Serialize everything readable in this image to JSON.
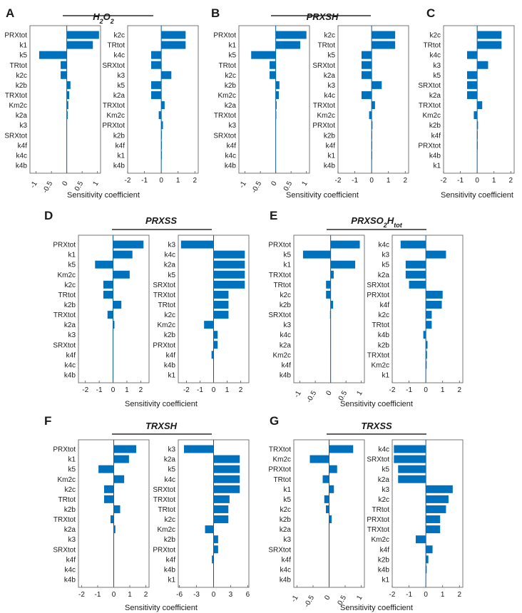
{
  "xlabel": "Sensitivity coefficient",
  "colors": {
    "bar": "#0072bd"
  },
  "chart_data": [
    {
      "type": "bar",
      "letter": "A",
      "title": "H2O2",
      "subplots": [
        {
          "categories": [
            "PRXtot",
            "k1",
            "k5",
            "TRtot",
            "k2c",
            "k2b",
            "TRXtot",
            "Km2c",
            "k2a",
            "k3",
            "SRXtot",
            "k4f",
            "k4c",
            "k4b"
          ],
          "values": [
            1.05,
            0.85,
            -0.9,
            -0.2,
            -0.2,
            0.12,
            0.08,
            0.05,
            0.03,
            0.0,
            0.0,
            0.0,
            0.0,
            0.0
          ],
          "xlim": [
            -1.2,
            1.1
          ],
          "xticks": [
            {
              "v": -1,
              "l": "-1"
            },
            {
              "v": -0.5,
              "l": "-0.5"
            },
            {
              "v": 0,
              "l": "0"
            },
            {
              "v": 0.5,
              "l": "0.5"
            },
            {
              "v": 1,
              "l": "1"
            }
          ],
          "rotate_ticks": true
        },
        {
          "categories": [
            "k2c",
            "TRtot",
            "k4c",
            "SRXtot",
            "k3",
            "k5",
            "k2a",
            "TRXtot",
            "Km2c",
            "PRXtot",
            "k2b",
            "k4f",
            "k1",
            "k4b"
          ],
          "values": [
            1.45,
            1.45,
            -0.6,
            -0.6,
            0.6,
            -0.6,
            -0.6,
            0.2,
            -0.15,
            0.1,
            0.02,
            0.01,
            0.01,
            0.0
          ],
          "xlim": [
            -2,
            2.2
          ],
          "xticks": [
            {
              "v": -2,
              "l": "-2"
            },
            {
              "v": -1,
              "l": "-1"
            },
            {
              "v": 0,
              "l": "0"
            },
            {
              "v": 1,
              "l": "1"
            },
            {
              "v": 2,
              "l": "2"
            }
          ],
          "rotate_ticks": false
        }
      ]
    },
    {
      "type": "bar",
      "letter": "B",
      "title": "PRXSH",
      "subplots": [
        {
          "categories": [
            "PRXtot",
            "k1",
            "k5",
            "TRtot",
            "k2c",
            "k2b",
            "Km2c",
            "k2a",
            "TRXtot",
            "k3",
            "SRXtot",
            "k4f",
            "k4c",
            "k4b"
          ],
          "values": [
            1.0,
            0.8,
            -0.8,
            -0.2,
            -0.2,
            0.12,
            0.1,
            0.03,
            0.02,
            0.0,
            0.0,
            0.0,
            0.0,
            0.0
          ],
          "xlim": [
            -1.2,
            1.1
          ],
          "xticks": [
            {
              "v": -1,
              "l": "-1"
            },
            {
              "v": -0.5,
              "l": "-0.5"
            },
            {
              "v": 0,
              "l": "0"
            },
            {
              "v": 0.5,
              "l": "0.5"
            },
            {
              "v": 1,
              "l": "1"
            }
          ],
          "rotate_ticks": true
        },
        {
          "categories": [
            "k2c",
            "TRtot",
            "k5",
            "SRXtot",
            "k2a",
            "k3",
            "k4c",
            "TRXtot",
            "Km2c",
            "PRXtot",
            "k2b",
            "k4f",
            "k1",
            "k4b"
          ],
          "values": [
            1.4,
            1.4,
            -0.6,
            -0.6,
            -0.6,
            0.6,
            -0.6,
            0.2,
            -0.15,
            0.05,
            0.02,
            0.01,
            0.01,
            0.0
          ],
          "xlim": [
            -2,
            2.2
          ],
          "xticks": [
            {
              "v": -2,
              "l": "-2"
            },
            {
              "v": -1,
              "l": "-1"
            },
            {
              "v": 0,
              "l": "0"
            },
            {
              "v": 1,
              "l": "1"
            },
            {
              "v": 2,
              "l": "2"
            }
          ],
          "rotate_ticks": false
        }
      ]
    },
    {
      "type": "bar",
      "letter": "C",
      "title": "PRXSOH",
      "subplots": [
        {
          "categories": [
            "k2c",
            "TRtot",
            "k4c",
            "k3",
            "k5",
            "SRXtot",
            "k2a",
            "TRXtot",
            "Km2c",
            "k2b",
            "k4f",
            "PRXtot",
            "k4b",
            "k1"
          ],
          "values": [
            1.45,
            1.45,
            -0.6,
            0.65,
            -0.6,
            -0.6,
            -0.6,
            0.3,
            -0.2,
            0.05,
            0.02,
            0.01,
            0.0,
            0.0
          ],
          "xlim": [
            -2,
            2.2
          ],
          "xticks": [
            {
              "v": -2,
              "l": "-2"
            },
            {
              "v": -1,
              "l": "-1"
            },
            {
              "v": 0,
              "l": "0"
            },
            {
              "v": 1,
              "l": "1"
            },
            {
              "v": 2,
              "l": "2"
            }
          ],
          "rotate_ticks": false
        }
      ]
    },
    {
      "type": "bar",
      "letter": "D",
      "title": "PRXSS",
      "subplots": [
        {
          "categories": [
            "PRXtot",
            "k1",
            "k5",
            "Km2c",
            "k2c",
            "TRtot",
            "k2b",
            "TRXtot",
            "k2a",
            "k3",
            "SRXtot",
            "k4f",
            "k4c",
            "k4b"
          ],
          "values": [
            2.2,
            1.4,
            -1.3,
            1.2,
            -0.7,
            -0.7,
            0.6,
            -0.4,
            0.1,
            0.0,
            0.0,
            0.0,
            0.0,
            0.0
          ],
          "xlim": [
            -2.5,
            2.6
          ],
          "xticks": [
            {
              "v": -2,
              "l": "-2"
            },
            {
              "v": -1,
              "l": "-1"
            },
            {
              "v": 0,
              "l": "0"
            },
            {
              "v": 1,
              "l": "1"
            },
            {
              "v": 2,
              "l": "2"
            }
          ],
          "rotate_ticks": false
        },
        {
          "categories": [
            "k3",
            "k4c",
            "k2a",
            "k5",
            "SRXtot",
            "TRXtot",
            "TRtot",
            "k2c",
            "Km2c",
            "k2b",
            "PRXtot",
            "k4f",
            "k4b",
            "k1"
          ],
          "values": [
            -2.4,
            2.3,
            2.3,
            2.3,
            2.3,
            1.1,
            1.1,
            1.1,
            -0.7,
            0.3,
            0.3,
            -0.15,
            0.0,
            0.0
          ],
          "xlim": [
            -2.6,
            2.6
          ],
          "xticks": [
            {
              "v": -2,
              "l": "-2"
            },
            {
              "v": -1,
              "l": "-1"
            },
            {
              "v": 0,
              "l": "0"
            },
            {
              "v": 1,
              "l": "1"
            },
            {
              "v": 2,
              "l": "2"
            }
          ],
          "rotate_ticks": false
        }
      ]
    },
    {
      "type": "bar",
      "letter": "E",
      "title": "PRXSO2Htot",
      "title_parts": [
        {
          "t": "PRXSO",
          "sub": false
        },
        {
          "t": "2",
          "sub": true
        },
        {
          "t": "H",
          "sub": false
        },
        {
          "t": "tot",
          "sub": true
        }
      ],
      "subplots": [
        {
          "categories": [
            "PRXtot",
            "k5",
            "k1",
            "TRXtot",
            "TRtot",
            "k2c",
            "k2b",
            "SRXtot",
            "k3",
            "k4c",
            "k2a",
            "Km2c",
            "k4f",
            "k4b"
          ],
          "values": [
            0.95,
            -0.9,
            0.8,
            0.1,
            -0.15,
            -0.15,
            0.08,
            -0.02,
            -0.01,
            -0.01,
            -0.01,
            0.0,
            0.0,
            0.0
          ],
          "xlim": [
            -1.2,
            1.1
          ],
          "xticks": [
            {
              "v": -1,
              "l": "-1"
            },
            {
              "v": -0.5,
              "l": "-0.5"
            },
            {
              "v": 0,
              "l": "0"
            },
            {
              "v": 0.5,
              "l": "0.5"
            },
            {
              "v": 1,
              "l": "1"
            }
          ],
          "rotate_ticks": true
        },
        {
          "categories": [
            "k4c",
            "k3",
            "k5",
            "k2a",
            "SRXtot",
            "PRXtot",
            "k4f",
            "k2c",
            "TRtot",
            "k4b",
            "k2b",
            "TRXtot",
            "Km2c",
            "k1"
          ],
          "values": [
            -1.5,
            1.2,
            -1.2,
            -1.2,
            -1.0,
            1.0,
            0.95,
            0.35,
            0.35,
            -0.15,
            0.1,
            0.07,
            0.05,
            0.0
          ],
          "xlim": [
            -2,
            2.2
          ],
          "xticks": [
            {
              "v": -2,
              "l": "-2"
            },
            {
              "v": -1,
              "l": "-1"
            },
            {
              "v": 0,
              "l": "0"
            },
            {
              "v": 1,
              "l": "1"
            },
            {
              "v": 2,
              "l": "2"
            }
          ],
          "rotate_ticks": false
        }
      ]
    },
    {
      "type": "bar",
      "letter": "F",
      "title": "TRXSH",
      "subplots": [
        {
          "categories": [
            "PRXtot",
            "k1",
            "k5",
            "Km2c",
            "k2c",
            "TRtot",
            "k2b",
            "TRXtot",
            "k2a",
            "k3",
            "SRXtot",
            "k4f",
            "k4c",
            "k4b"
          ],
          "values": [
            1.4,
            0.95,
            -0.95,
            0.65,
            -0.6,
            -0.6,
            0.4,
            -0.2,
            0.1,
            0.0,
            0.0,
            0.0,
            0.0,
            0.0
          ],
          "xlim": [
            -2.2,
            2.2
          ],
          "xticks": [
            {
              "v": -2,
              "l": "-2"
            },
            {
              "v": -1,
              "l": "-1"
            },
            {
              "v": 0,
              "l": "0"
            },
            {
              "v": 1,
              "l": "1"
            },
            {
              "v": 2,
              "l": "2"
            }
          ],
          "rotate_ticks": false
        },
        {
          "categories": [
            "k3",
            "k2a",
            "k5",
            "k4c",
            "SRXtot",
            "TRXtot",
            "TRtot",
            "k2c",
            "Km2c",
            "k2b",
            "PRXtot",
            "k4f",
            "k4b",
            "k1"
          ],
          "values": [
            -5.2,
            4.6,
            4.6,
            4.6,
            4.6,
            2.8,
            2.6,
            2.6,
            -1.5,
            0.8,
            0.8,
            -0.3,
            0.0,
            0.0
          ],
          "xlim": [
            -6.2,
            6.2
          ],
          "xticks": [
            {
              "v": -6,
              "l": "-6"
            },
            {
              "v": -3,
              "l": "-3"
            },
            {
              "v": 0,
              "l": "0"
            },
            {
              "v": 3,
              "l": "3"
            },
            {
              "v": 6,
              "l": "6"
            }
          ],
          "rotate_ticks": false
        }
      ]
    },
    {
      "type": "bar",
      "letter": "G",
      "title": "TRXSS",
      "subplots": [
        {
          "categories": [
            "TRXtot",
            "Km2c",
            "PRXtot",
            "TRtot",
            "k1",
            "k5",
            "k2c",
            "k2b",
            "k2a",
            "k3",
            "SRXtot",
            "k4f",
            "k4c",
            "k4b"
          ],
          "values": [
            0.75,
            -0.6,
            0.25,
            -0.2,
            0.15,
            -0.15,
            -0.1,
            0.08,
            0.0,
            0.0,
            0.0,
            0.0,
            0.0,
            0.0
          ],
          "xlim": [
            -1.1,
            1.1
          ],
          "xticks": [
            {
              "v": -1,
              "l": "-1"
            },
            {
              "v": -0.5,
              "l": "-0.5"
            },
            {
              "v": 0,
              "l": "0"
            },
            {
              "v": 0.5,
              "l": "0.5"
            },
            {
              "v": 1,
              "l": "1"
            }
          ],
          "rotate_ticks": true
        },
        {
          "categories": [
            "k4c",
            "SRXtot",
            "k5",
            "k2a",
            "k3",
            "k2c",
            "TRtot",
            "PRXtot",
            "TRXtot",
            "Km2c",
            "k4f",
            "k2b",
            "k4b",
            "k1"
          ],
          "values": [
            -1.9,
            -1.9,
            -1.65,
            -1.65,
            1.6,
            1.35,
            1.2,
            0.85,
            0.85,
            -0.6,
            0.4,
            0.15,
            0.05,
            0.0
          ],
          "xlim": [
            -2,
            2.2
          ],
          "xticks": [
            {
              "v": -2,
              "l": "-2"
            },
            {
              "v": -1,
              "l": "-1"
            },
            {
              "v": 0,
              "l": "0"
            },
            {
              "v": 1,
              "l": "1"
            },
            {
              "v": 2,
              "l": "2"
            }
          ],
          "rotate_ticks": false
        }
      ]
    }
  ]
}
